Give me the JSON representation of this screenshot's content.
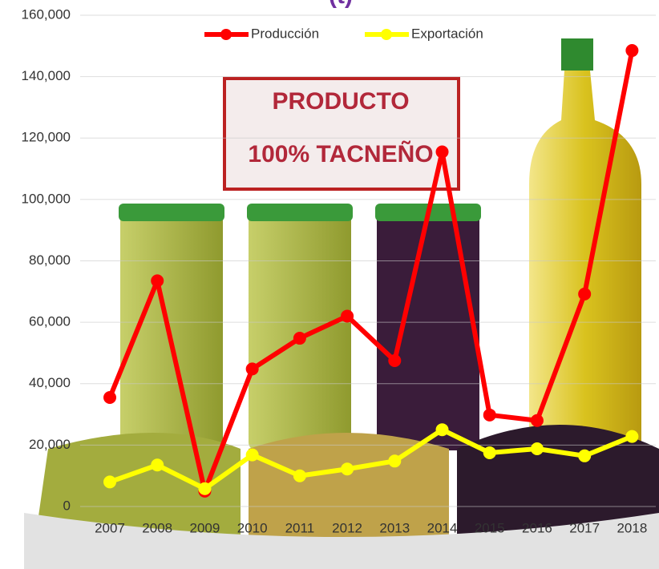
{
  "chart_data": {
    "type": "line",
    "title": "(t)",
    "annotations": [
      "PRODUCTO",
      "100% TACNEÑO"
    ],
    "categories": [
      "2007",
      "2008",
      "2009",
      "2010",
      "2011",
      "2012",
      "2013",
      "2014",
      "2015",
      "2016",
      "2017",
      "2018"
    ],
    "series": [
      {
        "name": "Producción",
        "color": "#ff0000",
        "values": [
          35500,
          73500,
          5000,
          44800,
          54800,
          62000,
          47500,
          115500,
          29800,
          28000,
          69200,
          148500
        ]
      },
      {
        "name": "Exportación",
        "color": "#ffff00",
        "values": [
          8000,
          13500,
          5800,
          16800,
          10000,
          12200,
          14800,
          25000,
          17500,
          18800,
          16500,
          22800
        ]
      }
    ],
    "ylim": [
      0,
      160000
    ],
    "yticks": [
      0,
      {
        "value": 20000,
        "label": "20,000"
      },
      {
        "value": 40000,
        "label": "40,000"
      },
      {
        "value": 60000,
        "label": "60,000"
      },
      {
        "value": 80000,
        "label": "80,000"
      },
      {
        "value": 100000,
        "label": "100,000"
      },
      {
        "value": 120000,
        "label": "120,000"
      },
      {
        "value": 140000,
        "label": "140,000"
      },
      {
        "value": 160000,
        "label": "160,000"
      }
    ],
    "grid": true,
    "legend": "top"
  }
}
